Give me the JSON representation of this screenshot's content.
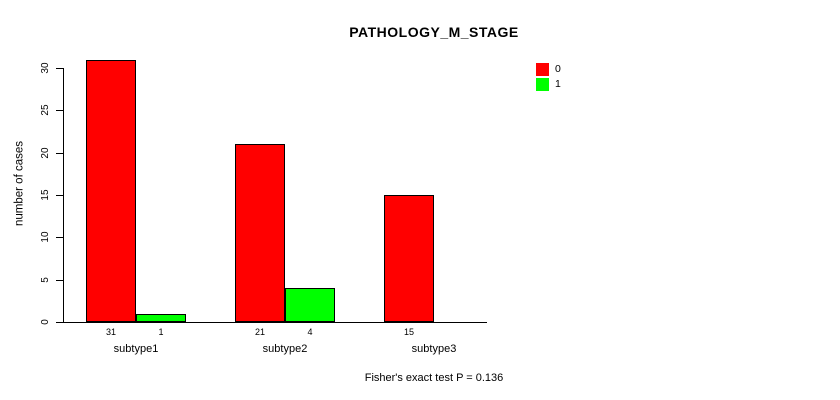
{
  "chart_data": {
    "type": "bar",
    "title": "PATHOLOGY_M_STAGE",
    "ylabel": "number of cases",
    "xlabel": "",
    "categories": [
      "subtype1",
      "subtype2",
      "subtype3"
    ],
    "series": [
      {
        "name": "0",
        "color": "#ff0000",
        "values": [
          31,
          21,
          15
        ]
      },
      {
        "name": "1",
        "color": "#00ff00",
        "values": [
          1,
          4,
          0
        ]
      }
    ],
    "bar_value_labels": [
      [
        "31",
        "1"
      ],
      [
        "21",
        "4"
      ],
      [
        "15",
        ""
      ]
    ],
    "yticks": [
      0,
      5,
      10,
      15,
      20,
      25,
      30
    ],
    "ylim": [
      0,
      31
    ],
    "grid": false,
    "legend_position": "top-right",
    "caption": "Fisher's exact test P = 0.136",
    "colors": {
      "bar_red": "#ff0000",
      "bar_green": "#00ff00",
      "bar_border": "#000000",
      "axis": "#000000",
      "text": "#000000",
      "background": "#ffffff"
    }
  }
}
